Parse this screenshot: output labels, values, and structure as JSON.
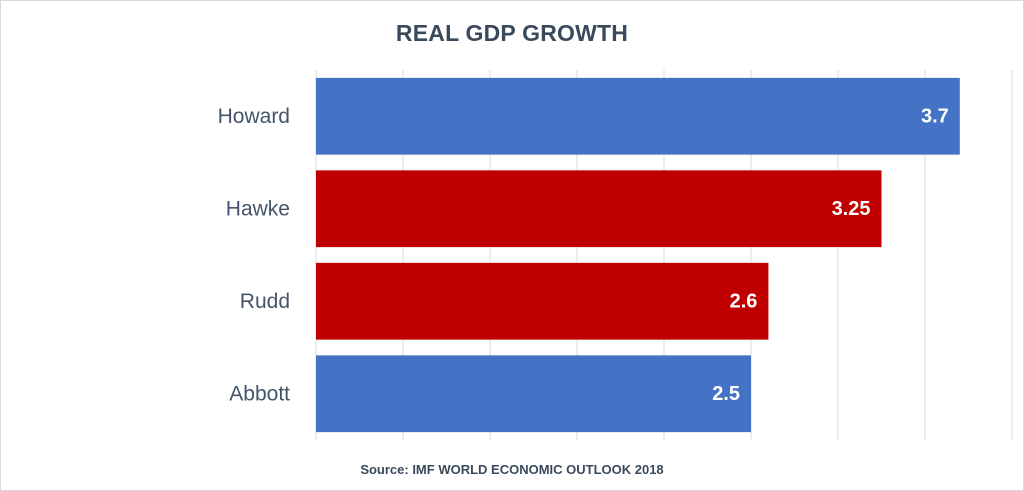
{
  "chart_data": {
    "type": "bar",
    "orientation": "horizontal",
    "title": "REAL GDP GROWTH",
    "source": "Source: IMF WORLD ECONOMIC OUTLOOK 2018",
    "categories": [
      "Howard",
      "Hawke",
      "Rudd",
      "Abbott"
    ],
    "values": [
      3.7,
      3.25,
      2.6,
      2.5
    ],
    "value_labels": [
      "3.7",
      "3.25",
      "2.6",
      "2.5"
    ],
    "colors": [
      "#4472c4",
      "#c00000",
      "#c00000",
      "#4472c4"
    ],
    "xlim": [
      0,
      4
    ],
    "gridlines": true,
    "legend": "none"
  }
}
